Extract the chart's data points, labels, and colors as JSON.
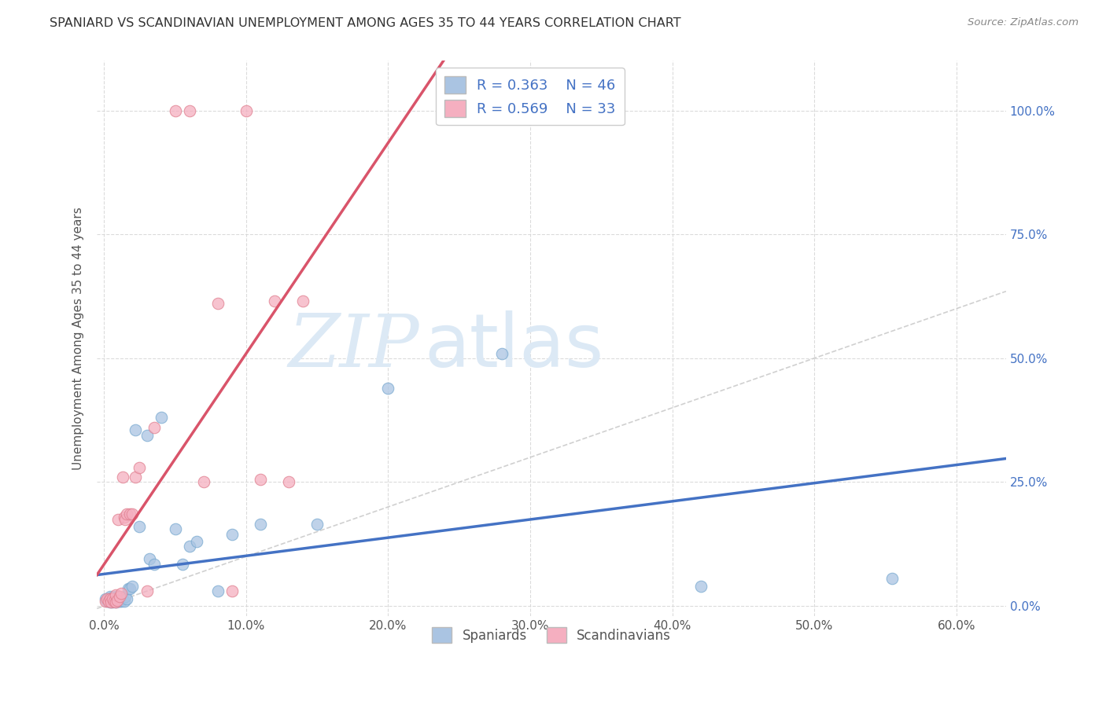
{
  "title": "SPANIARD VS SCANDINAVIAN UNEMPLOYMENT AMONG AGES 35 TO 44 YEARS CORRELATION CHART",
  "source": "Source: ZipAtlas.com",
  "xlabel_ticks": [
    "0.0%",
    "10.0%",
    "20.0%",
    "30.0%",
    "40.0%",
    "50.0%",
    "60.0%"
  ],
  "xlabel_vals": [
    0.0,
    0.1,
    0.2,
    0.3,
    0.4,
    0.5,
    0.6
  ],
  "ylabel": "Unemployment Among Ages 35 to 44 years",
  "ylabel_ticks": [
    "0.0%",
    "25.0%",
    "50.0%",
    "75.0%",
    "100.0%"
  ],
  "ylabel_vals": [
    0.0,
    0.25,
    0.5,
    0.75,
    1.0
  ],
  "xlim": [
    -0.005,
    0.635
  ],
  "ylim": [
    -0.02,
    1.1
  ],
  "spaniard_R": 0.363,
  "spaniard_N": 46,
  "scandinavian_R": 0.569,
  "scandinavian_N": 33,
  "spaniard_color": "#aac4e2",
  "spaniard_edge": "#7aaad0",
  "scandinavian_color": "#f5afc0",
  "scandinavian_edge": "#e08090",
  "trend_spaniard_color": "#4472c4",
  "trend_scandinavian_color": "#d9546a",
  "diagonal_color": "#c8c8c8",
  "legend_text_color": "#4472c4",
  "spaniard_points_x": [
    0.001,
    0.002,
    0.003,
    0.004,
    0.004,
    0.005,
    0.005,
    0.006,
    0.006,
    0.007,
    0.007,
    0.008,
    0.008,
    0.009,
    0.009,
    0.01,
    0.01,
    0.011,
    0.011,
    0.012,
    0.012,
    0.013,
    0.014,
    0.015,
    0.016,
    0.017,
    0.018,
    0.02,
    0.022,
    0.025,
    0.03,
    0.032,
    0.035,
    0.04,
    0.05,
    0.055,
    0.06,
    0.065,
    0.08,
    0.09,
    0.11,
    0.15,
    0.2,
    0.28,
    0.42,
    0.555
  ],
  "spaniard_points_y": [
    0.015,
    0.01,
    0.015,
    0.008,
    0.02,
    0.01,
    0.015,
    0.008,
    0.018,
    0.01,
    0.015,
    0.008,
    0.02,
    0.01,
    0.015,
    0.01,
    0.02,
    0.01,
    0.015,
    0.01,
    0.018,
    0.015,
    0.01,
    0.02,
    0.015,
    0.035,
    0.035,
    0.04,
    0.355,
    0.16,
    0.345,
    0.095,
    0.085,
    0.38,
    0.155,
    0.085,
    0.12,
    0.13,
    0.03,
    0.145,
    0.165,
    0.165,
    0.44,
    0.51,
    0.04,
    0.055
  ],
  "scandinavian_points_x": [
    0.001,
    0.002,
    0.003,
    0.004,
    0.005,
    0.006,
    0.007,
    0.008,
    0.008,
    0.009,
    0.01,
    0.011,
    0.012,
    0.013,
    0.014,
    0.015,
    0.016,
    0.018,
    0.02,
    0.022,
    0.025,
    0.03,
    0.035,
    0.05,
    0.06,
    0.07,
    0.08,
    0.09,
    0.1,
    0.11,
    0.12,
    0.13,
    0.14
  ],
  "scandinavian_points_y": [
    0.01,
    0.015,
    0.01,
    0.015,
    0.008,
    0.015,
    0.01,
    0.008,
    0.022,
    0.012,
    0.175,
    0.02,
    0.025,
    0.26,
    0.18,
    0.175,
    0.185,
    0.185,
    0.185,
    0.26,
    0.28,
    0.03,
    0.36,
    1.0,
    1.0,
    0.25,
    0.61,
    0.03,
    1.0,
    0.255,
    0.615,
    0.25,
    0.615
  ],
  "watermark_zip": "ZIP",
  "watermark_atlas": "atlas",
  "watermark_color": "#dce9f5",
  "background_color": "#ffffff",
  "grid_color": "#d8d8d8"
}
